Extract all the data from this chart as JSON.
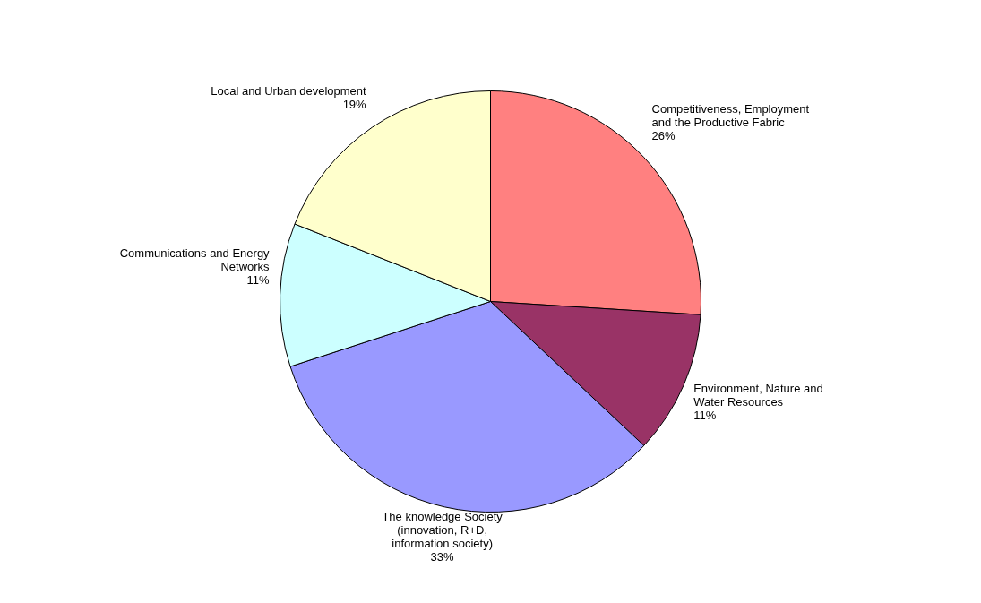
{
  "chart_data": {
    "type": "pie",
    "categories": [
      "Competitiveness, Employment and the Productive Fabric",
      "Environment, Nature and Water Resources",
      "The knowledge Society (innovation, R+D, information society)",
      "Communications and Energy Networks",
      "Local and Urban development"
    ],
    "values": [
      26,
      11,
      33,
      11,
      19
    ],
    "value_labels": [
      "26%",
      "11%",
      "33%",
      "11%",
      "19%"
    ],
    "colors": [
      "#ff8080",
      "#993366",
      "#9999ff",
      "#ccffff",
      "#ffffcc"
    ]
  }
}
